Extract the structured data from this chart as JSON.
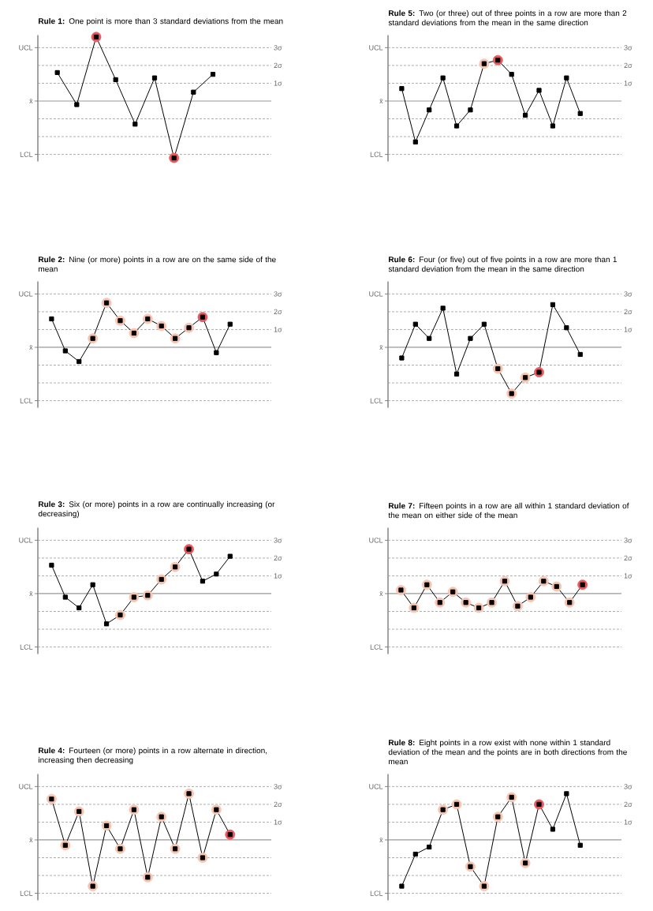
{
  "chart_data": [
    {
      "type": "line",
      "title": "**Rule 1:** One point is more than 3 standard deviations from the mean",
      "categories": [
        null,
        null,
        null,
        null,
        null,
        null,
        null,
        null,
        null
      ],
      "series": [
        {
          "type": "scatter",
          "axis": "y2",
          "color": "#e8585c",
          "values": [
            null,
            null,
            3.6,
            null,
            null,
            null,
            -3.2,
            null,
            null
          ]
        },
        {
          "axis": "y2",
          "marker": "square",
          "color": "#000000",
          "values": [
            1.6,
            -0.2,
            3.6,
            1.2,
            -1.3,
            1.3,
            -3.2,
            0.5,
            1.5
          ]
        }
      ],
      "y2lim": [
        -3.4,
        3.7
      ],
      "y2ticks": [
        {
          "value": 3,
          "label": "3σ"
        },
        {
          "value": 2,
          "label": "2σ"
        },
        {
          "value": 1,
          "label": "1σ"
        }
      ],
      "ref_lines": [
        {
          "axis": "y2",
          "value": 3,
          "label": "UCL",
          "line_style": "dashed",
          "color": "#999999"
        },
        {
          "axis": "y2",
          "value": 2,
          "line_style": "dashed",
          "color": "#999999"
        },
        {
          "axis": "y2",
          "value": 1,
          "line_style": "dashed",
          "color": "#999999"
        },
        {
          "axis": "y2",
          "value": 0,
          "label": "x̄",
          "line_style": "solid",
          "color": "#999999"
        },
        {
          "axis": "y2",
          "value": -1,
          "line_style": "dashed",
          "color": "#999999"
        },
        {
          "axis": "y2",
          "value": -2,
          "line_style": "dashed",
          "color": "#999999"
        },
        {
          "axis": "y2",
          "value": -3,
          "label": "LCL",
          "line_style": "dashed",
          "color": "#999999"
        }
      ]
    },
    {
      "type": "line",
      "title": "**Rule 5:** Two (or three) out of three points in a row are more than 2 standard deviations from the mean in the same direction",
      "categories": [
        null,
        null,
        null,
        null,
        null,
        null,
        null,
        null,
        null,
        null,
        null,
        null,
        null,
        null
      ],
      "series": [
        {
          "type": "scatter",
          "axis": "y2",
          "color": "#f6c4b0",
          "values": [
            null,
            null,
            null,
            null,
            null,
            null,
            2.1,
            null,
            null,
            null,
            null,
            null,
            null,
            null
          ]
        },
        {
          "type": "scatter",
          "axis": "y2",
          "color": "#e8585c",
          "values": [
            null,
            null,
            null,
            null,
            null,
            null,
            null,
            2.3,
            null,
            null,
            null,
            null,
            null,
            null
          ]
        },
        {
          "axis": "y2",
          "marker": "square",
          "color": "#000000",
          "values": [
            0.7,
            -2.3,
            -0.5,
            1.3,
            -1.4,
            -0.5,
            2.1,
            2.3,
            1.5,
            -0.8,
            0.6,
            -1.4,
            1.3,
            -0.7
          ]
        }
      ],
      "y2lim": [
        -3.4,
        3.7
      ],
      "y2ticks": [
        {
          "value": 3,
          "label": "3σ"
        },
        {
          "value": 2,
          "label": "2σ"
        },
        {
          "value": 1,
          "label": "1σ"
        }
      ],
      "ref_lines": [
        {
          "axis": "y2",
          "value": 3,
          "label": "UCL",
          "line_style": "dashed",
          "color": "#999999"
        },
        {
          "axis": "y2",
          "value": 2,
          "line_style": "dashed",
          "color": "#999999"
        },
        {
          "axis": "y2",
          "value": 1,
          "line_style": "dashed",
          "color": "#999999"
        },
        {
          "axis": "y2",
          "value": 0,
          "label": "x̄",
          "line_style": "solid",
          "color": "#999999"
        },
        {
          "axis": "y2",
          "value": -1,
          "line_style": "dashed",
          "color": "#999999"
        },
        {
          "axis": "y2",
          "value": -2,
          "line_style": "dashed",
          "color": "#999999"
        },
        {
          "axis": "y2",
          "value": -3,
          "label": "LCL",
          "line_style": "dashed",
          "color": "#999999"
        }
      ]
    },
    {
      "type": "line",
      "title": "**Rule 2:** Nine (or more) points in a row are on the same side of the mean",
      "categories": [
        null,
        null,
        null,
        null,
        null,
        null,
        null,
        null,
        null,
        null,
        null,
        null,
        null,
        null
      ],
      "series": [
        {
          "type": "scatter",
          "axis": "y2",
          "color": "#f6c4b0",
          "values": [
            null,
            null,
            null,
            0.5,
            2.5,
            1.5,
            0.8,
            1.6,
            1.2,
            0.5,
            1.1,
            null,
            null,
            null
          ]
        },
        {
          "type": "scatter",
          "axis": "y2",
          "color": "#e8585c",
          "values": [
            null,
            null,
            null,
            null,
            null,
            null,
            null,
            null,
            null,
            null,
            null,
            1.7,
            null,
            null
          ]
        },
        {
          "axis": "y2",
          "marker": "square",
          "color": "#000000",
          "values": [
            1.6,
            -0.2,
            -0.8,
            0.5,
            2.5,
            1.5,
            0.8,
            1.6,
            1.2,
            0.5,
            1.1,
            1.7,
            -0.3,
            1.3
          ]
        }
      ],
      "y2lim": [
        -3.4,
        3.7
      ],
      "y2ticks": [
        {
          "value": 3,
          "label": "3σ"
        },
        {
          "value": 2,
          "label": "2σ"
        },
        {
          "value": 1,
          "label": "1σ"
        }
      ],
      "ref_lines": [
        {
          "axis": "y2",
          "value": 3,
          "label": "UCL",
          "line_style": "dashed",
          "color": "#999999"
        },
        {
          "axis": "y2",
          "value": 2,
          "line_style": "dashed",
          "color": "#999999"
        },
        {
          "axis": "y2",
          "value": 1,
          "line_style": "dashed",
          "color": "#999999"
        },
        {
          "axis": "y2",
          "value": 0,
          "label": "x̄",
          "line_style": "solid",
          "color": "#999999"
        },
        {
          "axis": "y2",
          "value": -1,
          "line_style": "dashed",
          "color": "#999999"
        },
        {
          "axis": "y2",
          "value": -2,
          "line_style": "dashed",
          "color": "#999999"
        },
        {
          "axis": "y2",
          "value": -3,
          "label": "LCL",
          "line_style": "dashed",
          "color": "#999999"
        }
      ]
    },
    {
      "type": "line",
      "title": "**Rule 6:** Four (or five) out of five points in a row are more than 1 standard deviation from the mean in the same direction",
      "categories": [
        null,
        null,
        null,
        null,
        null,
        null,
        null,
        null,
        null,
        null,
        null,
        null,
        null,
        null
      ],
      "series": [
        {
          "type": "scatter",
          "axis": "y2",
          "color": "#f6c4b0",
          "values": [
            null,
            null,
            null,
            null,
            null,
            null,
            null,
            -1.2,
            -2.6,
            -1.7,
            null,
            null,
            null,
            null
          ]
        },
        {
          "type": "scatter",
          "axis": "y2",
          "color": "#e8585c",
          "values": [
            null,
            null,
            null,
            null,
            null,
            null,
            null,
            null,
            null,
            null,
            -1.4,
            null,
            null,
            null
          ]
        },
        {
          "axis": "y2",
          "marker": "square",
          "color": "#000000",
          "values": [
            -0.6,
            1.3,
            0.5,
            2.2,
            -1.5,
            0.5,
            1.3,
            -1.2,
            -2.6,
            -1.7,
            -1.4,
            2.4,
            1.1,
            -0.4
          ]
        }
      ],
      "y2lim": [
        -3.4,
        3.7
      ],
      "y2ticks": [
        {
          "value": 3,
          "label": "3σ"
        },
        {
          "value": 2,
          "label": "2σ"
        },
        {
          "value": 1,
          "label": "1σ"
        }
      ],
      "ref_lines": [
        {
          "axis": "y2",
          "value": 3,
          "label": "UCL",
          "line_style": "dashed",
          "color": "#999999"
        },
        {
          "axis": "y2",
          "value": 2,
          "line_style": "dashed",
          "color": "#999999"
        },
        {
          "axis": "y2",
          "value": 1,
          "line_style": "dashed",
          "color": "#999999"
        },
        {
          "axis": "y2",
          "value": 0,
          "label": "x̄",
          "line_style": "solid",
          "color": "#999999"
        },
        {
          "axis": "y2",
          "value": -1,
          "line_style": "dashed",
          "color": "#999999"
        },
        {
          "axis": "y2",
          "value": -2,
          "line_style": "dashed",
          "color": "#999999"
        },
        {
          "axis": "y2",
          "value": -3,
          "label": "LCL",
          "line_style": "dashed",
          "color": "#999999"
        }
      ]
    },
    {
      "type": "line",
      "title": "**Rule 3:** Six (or more) points in a row are continually increasing (or decreasing)",
      "categories": [
        null,
        null,
        null,
        null,
        null,
        null,
        null,
        null,
        null,
        null,
        null,
        null,
        null,
        null
      ],
      "series": [
        {
          "type": "scatter",
          "axis": "y2",
          "color": "#f6c4b0",
          "values": [
            null,
            null,
            null,
            null,
            null,
            -1.2,
            -0.2,
            -0.1,
            0.8,
            1.5,
            null,
            null,
            null,
            null
          ]
        },
        {
          "type": "scatter",
          "axis": "y2",
          "color": "#e8585c",
          "values": [
            null,
            null,
            null,
            null,
            null,
            null,
            null,
            null,
            null,
            null,
            2.5,
            null,
            null,
            null
          ]
        },
        {
          "axis": "y2",
          "marker": "square",
          "color": "#000000",
          "values": [
            1.6,
            -0.2,
            -0.8,
            0.5,
            -1.7,
            -1.2,
            -0.2,
            -0.1,
            0.8,
            1.5,
            2.5,
            0.7,
            1.1,
            2.1
          ]
        }
      ],
      "y2lim": [
        -3.4,
        3.7
      ],
      "y2ticks": [
        {
          "value": 3,
          "label": "3σ"
        },
        {
          "value": 2,
          "label": "2σ"
        },
        {
          "value": 1,
          "label": "1σ"
        }
      ],
      "ref_lines": [
        {
          "axis": "y2",
          "value": 3,
          "label": "UCL",
          "line_style": "dashed",
          "color": "#999999"
        },
        {
          "axis": "y2",
          "value": 2,
          "line_style": "dashed",
          "color": "#999999"
        },
        {
          "axis": "y2",
          "value": 1,
          "line_style": "dashed",
          "color": "#999999"
        },
        {
          "axis": "y2",
          "value": 0,
          "label": "x̄",
          "line_style": "solid",
          "color": "#999999"
        },
        {
          "axis": "y2",
          "value": -1,
          "line_style": "dashed",
          "color": "#999999"
        },
        {
          "axis": "y2",
          "value": -2,
          "line_style": "dashed",
          "color": "#999999"
        },
        {
          "axis": "y2",
          "value": -3,
          "label": "LCL",
          "line_style": "dashed",
          "color": "#999999"
        }
      ]
    },
    {
      "type": "line",
      "title": "**Rule 7:** Fifteen points in a row are all within 1 standard deviation of the mean on either side of the mean",
      "categories": [
        null,
        null,
        null,
        null,
        null,
        null,
        null,
        null,
        null,
        null,
        null,
        null,
        null,
        null,
        null
      ],
      "series": [
        {
          "type": "scatter",
          "axis": "y2",
          "color": "#f6c4b0",
          "values": [
            0.2,
            -0.8,
            0.5,
            -0.5,
            0.1,
            -0.5,
            -0.8,
            -0.5,
            0.7,
            -0.7,
            -0.2,
            0.7,
            0.4,
            -0.5,
            null
          ]
        },
        {
          "type": "scatter",
          "axis": "y2",
          "color": "#e8585c",
          "values": [
            null,
            null,
            null,
            null,
            null,
            null,
            null,
            null,
            null,
            null,
            null,
            null,
            null,
            null,
            0.5
          ]
        },
        {
          "axis": "y2",
          "marker": "square",
          "color": "#000000",
          "values": [
            0.2,
            -0.8,
            0.5,
            -0.5,
            0.1,
            -0.5,
            -0.8,
            -0.5,
            0.7,
            -0.7,
            -0.2,
            0.7,
            0.4,
            -0.5,
            0.5
          ]
        }
      ],
      "y2lim": [
        -3.4,
        3.7
      ],
      "y2ticks": [
        {
          "value": 3,
          "label": "3σ"
        },
        {
          "value": 2,
          "label": "2σ"
        },
        {
          "value": 1,
          "label": "1σ"
        }
      ],
      "ref_lines": [
        {
          "axis": "y2",
          "value": 3,
          "label": "UCL",
          "line_style": "dashed",
          "color": "#999999"
        },
        {
          "axis": "y2",
          "value": 2,
          "line_style": "dashed",
          "color": "#999999"
        },
        {
          "axis": "y2",
          "value": 1,
          "line_style": "dashed",
          "color": "#999999"
        },
        {
          "axis": "y2",
          "value": 0,
          "label": "x̄",
          "line_style": "solid",
          "color": "#999999"
        },
        {
          "axis": "y2",
          "value": -1,
          "line_style": "dashed",
          "color": "#999999"
        },
        {
          "axis": "y2",
          "value": -2,
          "line_style": "dashed",
          "color": "#999999"
        },
        {
          "axis": "y2",
          "value": -3,
          "label": "LCL",
          "line_style": "dashed",
          "color": "#999999"
        }
      ]
    },
    {
      "type": "line",
      "title": "**Rule 4:** Fourteen (or more) points in a row alternate in direction, increasing then decreasing",
      "categories": [
        null,
        null,
        null,
        null,
        null,
        null,
        null,
        null,
        null,
        null,
        null,
        null,
        null,
        null
      ],
      "series": [
        {
          "type": "scatter",
          "axis": "y2",
          "color": "#f6c4b0",
          "values": [
            2.3,
            -0.3,
            1.6,
            -2.6,
            0.8,
            -0.5,
            1.7,
            -2.1,
            1.3,
            -0.5,
            2.6,
            -1.0,
            1.7,
            null
          ]
        },
        {
          "type": "scatter",
          "axis": "y2",
          "color": "#e8585c",
          "values": [
            null,
            null,
            null,
            null,
            null,
            null,
            null,
            null,
            null,
            null,
            null,
            null,
            null,
            0.3
          ]
        },
        {
          "axis": "y2",
          "marker": "square",
          "color": "#000000",
          "values": [
            2.3,
            -0.3,
            1.6,
            -2.6,
            0.8,
            -0.5,
            1.7,
            -2.1,
            1.3,
            -0.5,
            2.6,
            -1.0,
            1.7,
            0.3
          ]
        }
      ],
      "y2lim": [
        -3.4,
        3.7
      ],
      "y2ticks": [
        {
          "value": 3,
          "label": "3σ"
        },
        {
          "value": 2,
          "label": "2σ"
        },
        {
          "value": 1,
          "label": "1σ"
        }
      ],
      "ref_lines": [
        {
          "axis": "y2",
          "value": 3,
          "label": "UCL",
          "line_style": "dashed",
          "color": "#999999"
        },
        {
          "axis": "y2",
          "value": 2,
          "line_style": "dashed",
          "color": "#999999"
        },
        {
          "axis": "y2",
          "value": 1,
          "line_style": "dashed",
          "color": "#999999"
        },
        {
          "axis": "y2",
          "value": 0,
          "label": "x̄",
          "line_style": "solid",
          "color": "#999999"
        },
        {
          "axis": "y2",
          "value": -1,
          "line_style": "dashed",
          "color": "#999999"
        },
        {
          "axis": "y2",
          "value": -2,
          "line_style": "dashed",
          "color": "#999999"
        },
        {
          "axis": "y2",
          "value": -3,
          "label": "LCL",
          "line_style": "dashed",
          "color": "#999999"
        }
      ]
    },
    {
      "type": "line",
      "title": "**Rule 8:** Eight points in a row exist with none within 1 standard deviation of the mean and the points are in both directions from the mean",
      "categories": [
        null,
        null,
        null,
        null,
        null,
        null,
        null,
        null,
        null,
        null,
        null,
        null,
        null,
        null
      ],
      "series": [
        {
          "type": "scatter",
          "axis": "y2",
          "color": "#f6c4b0",
          "values": [
            null,
            null,
            null,
            1.7,
            2.0,
            -1.5,
            -2.6,
            1.3,
            2.4,
            -1.3,
            null,
            null,
            null,
            null
          ]
        },
        {
          "type": "scatter",
          "axis": "y2",
          "color": "#e8585c",
          "values": [
            null,
            null,
            null,
            null,
            null,
            null,
            null,
            null,
            null,
            null,
            2.0,
            null,
            null,
            null
          ]
        },
        {
          "axis": "y2",
          "marker": "square",
          "color": "#000000",
          "values": [
            -2.6,
            -0.8,
            -0.4,
            1.7,
            2.0,
            -1.5,
            -2.6,
            1.3,
            2.4,
            -1.3,
            2.0,
            0.6,
            2.6,
            -0.3
          ]
        }
      ],
      "y2lim": [
        -3.4,
        3.7
      ],
      "y2ticks": [
        {
          "value": 3,
          "label": "3σ"
        },
        {
          "value": 2,
          "label": "2σ"
        },
        {
          "value": 1,
          "label": "1σ"
        }
      ],
      "ref_lines": [
        {
          "axis": "y2",
          "value": 3,
          "label": "UCL",
          "line_style": "dashed",
          "color": "#999999"
        },
        {
          "axis": "y2",
          "value": 2,
          "line_style": "dashed",
          "color": "#999999"
        },
        {
          "axis": "y2",
          "value": 1,
          "line_style": "dashed",
          "color": "#999999"
        },
        {
          "axis": "y2",
          "value": 0,
          "label": "x̄",
          "line_style": "solid",
          "color": "#999999"
        },
        {
          "axis": "y2",
          "value": -1,
          "line_style": "dashed",
          "color": "#999999"
        },
        {
          "axis": "y2",
          "value": -2,
          "line_style": "dashed",
          "color": "#999999"
        },
        {
          "axis": "y2",
          "value": -3,
          "label": "LCL",
          "line_style": "dashed",
          "color": "#999999"
        }
      ]
    }
  ]
}
